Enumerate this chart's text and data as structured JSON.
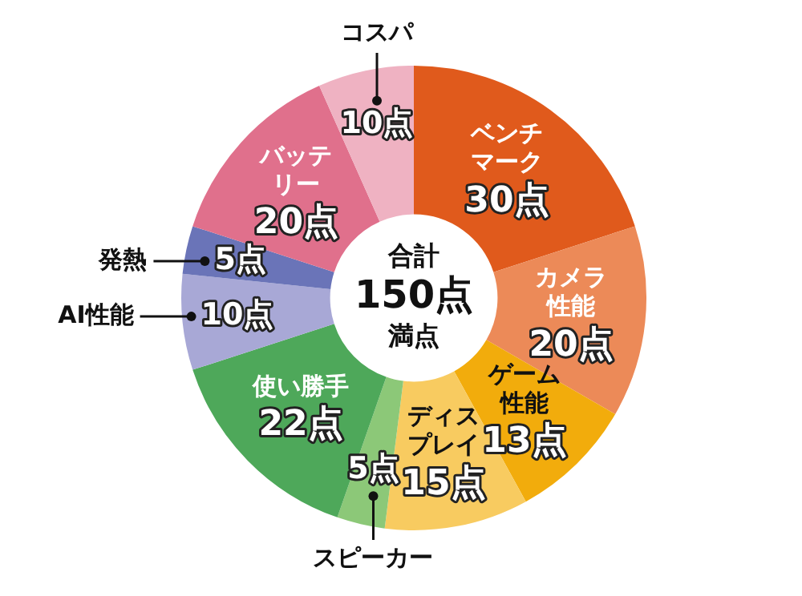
{
  "chart_data": {
    "type": "donut",
    "categories": [
      "ベンチマーク",
      "カメラ性能",
      "ゲーム性能",
      "ディスプレイ",
      "スピーカー",
      "使い勝手",
      "AI性能",
      "発熱",
      "バッテリー",
      "コスパ"
    ],
    "values": [
      30,
      20,
      13,
      15,
      5,
      22,
      10,
      5,
      20,
      10
    ],
    "value_labels": [
      "30点",
      "20点",
      "13点",
      "15点",
      "5点",
      "22点",
      "10点",
      "5点",
      "20点",
      "10点"
    ],
    "colors": [
      "#e05a1c",
      "#ec8a58",
      "#f2ac0c",
      "#f8cb60",
      "#8cc878",
      "#4ea85a",
      "#a8a8d6",
      "#6a74b8",
      "#e0708c",
      "#efb2c2"
    ],
    "annotations": [
      "合計",
      "150点",
      "満点"
    ],
    "legend": false
  }
}
